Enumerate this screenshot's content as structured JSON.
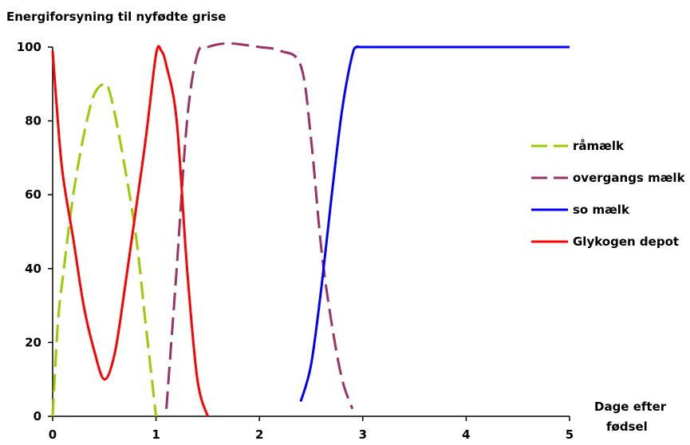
{
  "chart_data": {
    "type": "line",
    "title": "Energiforsyning til nyfødte grise",
    "xlabel_line1": "Dage efter",
    "xlabel_line2": "fødsel",
    "ylabel": "",
    "xlim": [
      0,
      5
    ],
    "ylim": [
      0,
      100
    ],
    "x_ticks": [
      "0",
      "1",
      "2",
      "3",
      "4",
      "5"
    ],
    "y_ticks": [
      "0",
      "20",
      "40",
      "60",
      "80",
      "100"
    ],
    "grid": false,
    "legend_position": "right",
    "series": [
      {
        "name": "råmælk",
        "color": "#99CC00",
        "dash": "dashed",
        "x": [
          0,
          0.05,
          0.1,
          0.2,
          0.3,
          0.4,
          0.5,
          0.55,
          0.65,
          0.8,
          0.9,
          1.0
        ],
        "y": [
          0,
          25,
          38,
          60,
          76,
          87,
          90,
          88,
          75,
          50,
          25,
          0
        ]
      },
      {
        "name": "overgangs mælk",
        "color": "#993366",
        "dash": "dashed",
        "x": [
          1.1,
          1.2,
          1.3,
          1.4,
          1.5,
          1.7,
          2.0,
          2.2,
          2.4,
          2.5,
          2.6,
          2.7,
          2.8,
          2.9
        ],
        "y": [
          2,
          40,
          80,
          98,
          100,
          101,
          100,
          99,
          95,
          75,
          45,
          25,
          10,
          2
        ]
      },
      {
        "name": "so mælk",
        "color": "#0000FF",
        "dash": "solid",
        "x": [
          2.4,
          2.5,
          2.6,
          2.7,
          2.8,
          2.9,
          2.95,
          3.0,
          3.5,
          4.0,
          4.5,
          5.0
        ],
        "y": [
          4,
          14,
          35,
          60,
          83,
          98,
          100,
          100,
          100,
          100,
          100,
          100
        ]
      },
      {
        "name": "Glykogen depot",
        "color": "#FF0000",
        "dash": "solid",
        "x": [
          0,
          0.05,
          0.1,
          0.2,
          0.3,
          0.4,
          0.5,
          0.6,
          0.7,
          0.8,
          0.9,
          1.0,
          1.05,
          1.1,
          1.2,
          1.3,
          1.4,
          1.5
        ],
        "y": [
          99,
          80,
          65,
          48,
          30,
          18,
          10,
          17,
          35,
          55,
          75,
          98,
          99,
          95,
          80,
          40,
          10,
          0
        ]
      }
    ]
  }
}
